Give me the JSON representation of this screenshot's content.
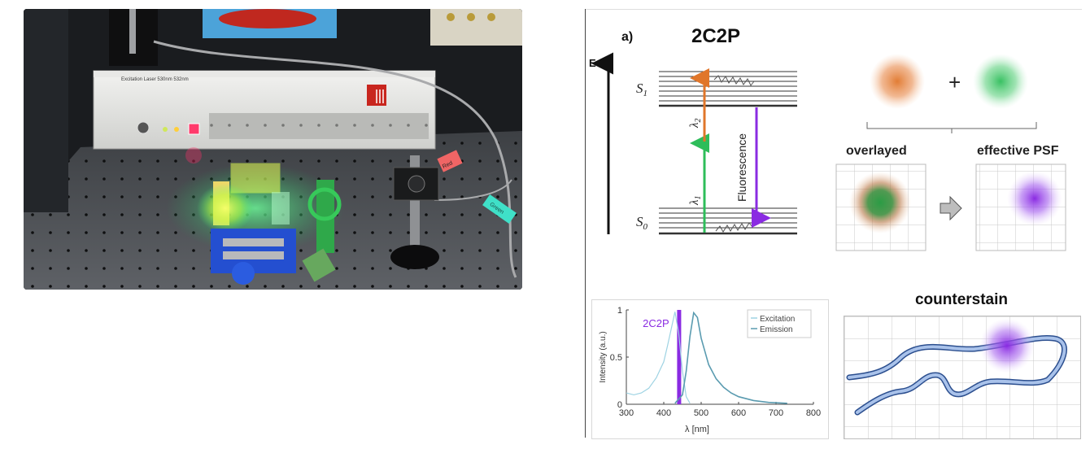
{
  "photo": {
    "laser_label": "Excitation Laser 530nm 532nm",
    "tag_red": "Red",
    "tag_green": "Green"
  },
  "diagram": {
    "panel_letter": "a)",
    "title": "2C2P",
    "energy_axis": "E",
    "state_upper": "S",
    "state_upper_sub": "1",
    "state_lower": "S",
    "state_lower_sub": "0",
    "lambda_1": "λ",
    "lambda_1_sub": "1",
    "lambda_2": "λ",
    "lambda_2_sub": "2",
    "fluorescence": "Fluorescence",
    "plus": "+",
    "overlayed_label": "overlayed",
    "effective_label": "effective PSF",
    "counterstain_label": "counterstain",
    "colors": {
      "orange": "#e0762a",
      "green": "#2ebd5a",
      "violet": "#8a2be2",
      "curve": "#6d8fc7"
    }
  },
  "chart_data": {
    "type": "line",
    "annotation": "2C2P",
    "xlabel": "λ [nm]",
    "ylabel": "Intensity (a.u.)",
    "xlim": [
      300,
      800
    ],
    "ylim": [
      0,
      1
    ],
    "x_ticks": [
      "300",
      "400",
      "500",
      "600",
      "700",
      "800"
    ],
    "y_ticks": [
      "0",
      "0.5",
      "1"
    ],
    "legend_position": "top-right",
    "series": [
      {
        "name": "Excitation",
        "x": [
          300,
          320,
          340,
          360,
          380,
          400,
          410,
          420,
          430,
          440,
          450,
          460,
          470
        ],
        "y": [
          0.12,
          0.1,
          0.12,
          0.17,
          0.28,
          0.45,
          0.62,
          0.8,
          0.98,
          0.75,
          0.35,
          0.08,
          0.01
        ]
      },
      {
        "name": "Emission",
        "x": [
          430,
          450,
          460,
          470,
          480,
          490,
          500,
          520,
          540,
          560,
          580,
          600,
          640,
          680,
          730
        ],
        "y": [
          0.01,
          0.1,
          0.35,
          0.72,
          0.97,
          0.92,
          0.7,
          0.42,
          0.27,
          0.18,
          0.12,
          0.08,
          0.04,
          0.02,
          0.01
        ]
      }
    ],
    "marker_band_x": 440
  }
}
